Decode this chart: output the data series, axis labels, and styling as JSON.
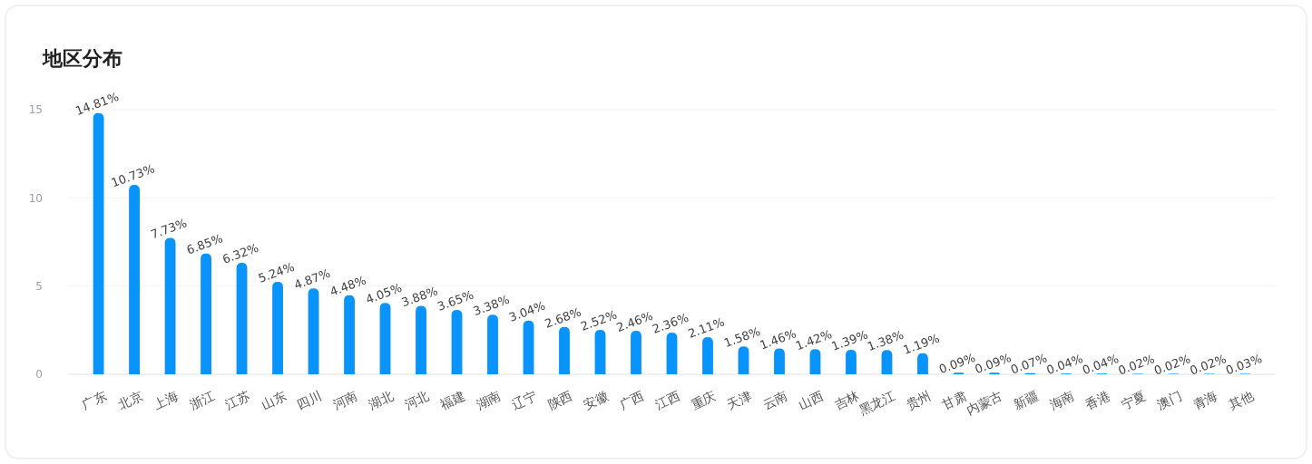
{
  "chart_data": {
    "type": "bar",
    "title": "地区分布",
    "categories": [
      "广东",
      "北京",
      "上海",
      "浙江",
      "江苏",
      "山东",
      "四川",
      "河南",
      "湖北",
      "河北",
      "福建",
      "湖南",
      "辽宁",
      "陕西",
      "安徽",
      "广西",
      "江西",
      "重庆",
      "天津",
      "云南",
      "山西",
      "吉林",
      "黑龙江",
      "贵州",
      "甘肃",
      "内蒙古",
      "新疆",
      "海南",
      "香港",
      "宁夏",
      "澳门",
      "青海",
      "其他"
    ],
    "values": [
      14.81,
      10.73,
      7.73,
      6.85,
      6.32,
      5.24,
      4.87,
      4.48,
      4.05,
      3.88,
      3.65,
      3.38,
      3.04,
      2.68,
      2.52,
      2.46,
      2.36,
      2.11,
      1.58,
      1.46,
      1.42,
      1.39,
      1.38,
      1.19,
      0.09,
      0.09,
      0.07,
      0.04,
      0.04,
      0.02,
      0.02,
      0.02,
      0.03
    ],
    "value_labels": [
      "14.81%",
      "10.73%",
      "7.73%",
      "6.85%",
      "6.32%",
      "5.24%",
      "4.87%",
      "4.48%",
      "4.05%",
      "3.88%",
      "3.65%",
      "3.38%",
      "3.04%",
      "2.68%",
      "2.52%",
      "2.46%",
      "2.36%",
      "2.11%",
      "1.58%",
      "1.46%",
      "1.42%",
      "1.39%",
      "1.38%",
      "1.19%",
      "0.09%",
      "0.09%",
      "0.07%",
      "0.04%",
      "0.04%",
      "0.02%",
      "0.02%",
      "0.02%",
      "0.03%"
    ],
    "color": "#0994fb",
    "ylim": [
      0,
      15
    ],
    "yticks": [
      0,
      5,
      10,
      15
    ],
    "grid": "y"
  }
}
